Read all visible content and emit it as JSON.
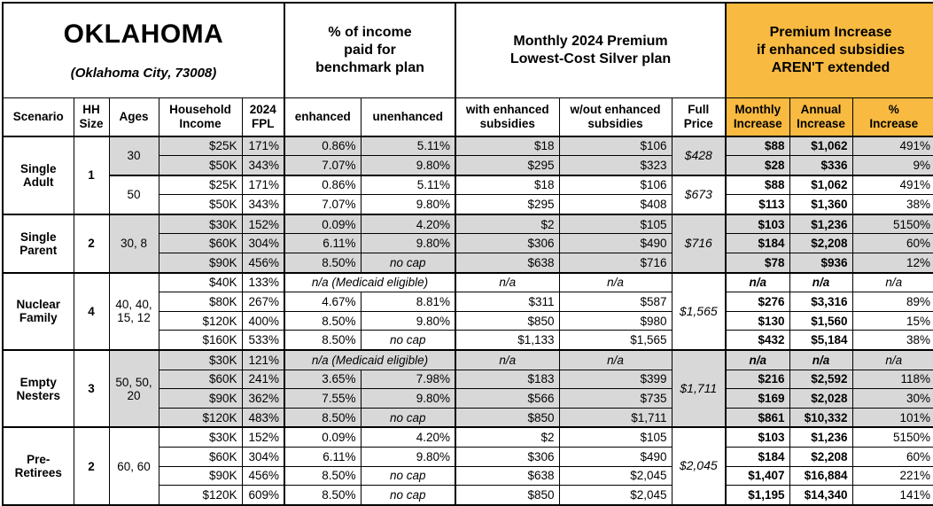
{
  "title": {
    "state": "OKLAHOMA",
    "city": "(Oklahoma City, 73008)"
  },
  "colors": {
    "highlight_orange": "#F8BA40",
    "row_shade_gray": "#D8D8D8"
  },
  "header": {
    "group_income": "% of income\npaid for\nbenchmark plan",
    "group_premium": "Monthly 2024 Premium\nLowest-Cost Silver plan",
    "group_increase": "Premium Increase\nif enhanced subsidies\nAREN'T extended",
    "columns": [
      "Scenario",
      "HH\nSize",
      "Ages",
      "Household\nIncome",
      "2024\nFPL",
      "enhanced",
      "unenhanced",
      "with enhanced\nsubsidies",
      "w/out enhanced\nsubsidies",
      "Full\nPrice",
      "Monthly\nIncrease",
      "Annual\nIncrease",
      "%\nIncrease"
    ]
  },
  "scenarios": [
    {
      "name": "Single\nAdult",
      "hh_size": "1",
      "subgroups": [
        {
          "ages": "30",
          "shaded": true,
          "full_price": "$428",
          "rows": [
            {
              "income": "$25K",
              "fpl": "171%",
              "enhanced": "0.86%",
              "unenhanced": "5.11%",
              "with_subsidies": "$18",
              "without_subsidies": "$106",
              "monthly_increase": "$88",
              "annual_increase": "$1,062",
              "pct_increase": "491%"
            },
            {
              "income": "$50K",
              "fpl": "343%",
              "enhanced": "7.07%",
              "unenhanced": "9.80%",
              "with_subsidies": "$295",
              "without_subsidies": "$323",
              "monthly_increase": "$28",
              "annual_increase": "$336",
              "pct_increase": "9%"
            }
          ]
        },
        {
          "ages": "50",
          "shaded": false,
          "full_price": "$673",
          "rows": [
            {
              "income": "$25K",
              "fpl": "171%",
              "enhanced": "0.86%",
              "unenhanced": "5.11%",
              "with_subsidies": "$18",
              "without_subsidies": "$106",
              "monthly_increase": "$88",
              "annual_increase": "$1,062",
              "pct_increase": "491%"
            },
            {
              "income": "$50K",
              "fpl": "343%",
              "enhanced": "7.07%",
              "unenhanced": "9.80%",
              "with_subsidies": "$295",
              "without_subsidies": "$408",
              "monthly_increase": "$113",
              "annual_increase": "$1,360",
              "pct_increase": "38%"
            }
          ]
        }
      ]
    },
    {
      "name": "Single\nParent",
      "hh_size": "2",
      "subgroups": [
        {
          "ages": "30, 8",
          "shaded": true,
          "full_price": "$716",
          "rows": [
            {
              "income": "$30K",
              "fpl": "152%",
              "enhanced": "0.09%",
              "unenhanced": "4.20%",
              "with_subsidies": "$2",
              "without_subsidies": "$105",
              "monthly_increase": "$103",
              "annual_increase": "$1,236",
              "pct_increase": "5150%"
            },
            {
              "income": "$60K",
              "fpl": "304%",
              "enhanced": "6.11%",
              "unenhanced": "9.80%",
              "with_subsidies": "$306",
              "without_subsidies": "$490",
              "monthly_increase": "$184",
              "annual_increase": "$2,208",
              "pct_increase": "60%"
            },
            {
              "income": "$90K",
              "fpl": "456%",
              "enhanced": "8.50%",
              "unenhanced": "no cap",
              "with_subsidies": "$638",
              "without_subsidies": "$716",
              "monthly_increase": "$78",
              "annual_increase": "$936",
              "pct_increase": "12%"
            }
          ]
        }
      ]
    },
    {
      "name": "Nuclear\nFamily",
      "hh_size": "4",
      "subgroups": [
        {
          "ages": "40, 40,\n15, 12",
          "shaded": false,
          "full_price": "$1,565",
          "rows": [
            {
              "income": "$40K",
              "fpl": "133%",
              "medicaid_note": "n/a (Medicaid eligible)",
              "with_subsidies": "n/a",
              "without_subsidies": "n/a",
              "monthly_increase": "n/a",
              "annual_increase": "n/a",
              "pct_increase": "n/a"
            },
            {
              "income": "$80K",
              "fpl": "267%",
              "enhanced": "4.67%",
              "unenhanced": "8.81%",
              "with_subsidies": "$311",
              "without_subsidies": "$587",
              "monthly_increase": "$276",
              "annual_increase": "$3,316",
              "pct_increase": "89%"
            },
            {
              "income": "$120K",
              "fpl": "400%",
              "enhanced": "8.50%",
              "unenhanced": "9.80%",
              "with_subsidies": "$850",
              "without_subsidies": "$980",
              "monthly_increase": "$130",
              "annual_increase": "$1,560",
              "pct_increase": "15%"
            },
            {
              "income": "$160K",
              "fpl": "533%",
              "enhanced": "8.50%",
              "unenhanced": "no cap",
              "with_subsidies": "$1,133",
              "without_subsidies": "$1,565",
              "monthly_increase": "$432",
              "annual_increase": "$5,184",
              "pct_increase": "38%"
            }
          ]
        }
      ]
    },
    {
      "name": "Empty\nNesters",
      "hh_size": "3",
      "subgroups": [
        {
          "ages": "50, 50,\n20",
          "shaded": true,
          "full_price": "$1,711",
          "rows": [
            {
              "income": "$30K",
              "fpl": "121%",
              "medicaid_note": "n/a (Medicaid eligible)",
              "with_subsidies": "n/a",
              "without_subsidies": "n/a",
              "monthly_increase": "n/a",
              "annual_increase": "n/a",
              "pct_increase": "n/a"
            },
            {
              "income": "$60K",
              "fpl": "241%",
              "enhanced": "3.65%",
              "unenhanced": "7.98%",
              "with_subsidies": "$183",
              "without_subsidies": "$399",
              "monthly_increase": "$216",
              "annual_increase": "$2,592",
              "pct_increase": "118%"
            },
            {
              "income": "$90K",
              "fpl": "362%",
              "enhanced": "7.55%",
              "unenhanced": "9.80%",
              "with_subsidies": "$566",
              "without_subsidies": "$735",
              "monthly_increase": "$169",
              "annual_increase": "$2,028",
              "pct_increase": "30%"
            },
            {
              "income": "$120K",
              "fpl": "483%",
              "enhanced": "8.50%",
              "unenhanced": "no cap",
              "with_subsidies": "$850",
              "without_subsidies": "$1,711",
              "monthly_increase": "$861",
              "annual_increase": "$10,332",
              "pct_increase": "101%"
            }
          ]
        }
      ]
    },
    {
      "name": "Pre-\nRetirees",
      "hh_size": "2",
      "subgroups": [
        {
          "ages": "60, 60",
          "shaded": false,
          "full_price": "$2,045",
          "rows": [
            {
              "income": "$30K",
              "fpl": "152%",
              "enhanced": "0.09%",
              "unenhanced": "4.20%",
              "with_subsidies": "$2",
              "without_subsidies": "$105",
              "monthly_increase": "$103",
              "annual_increase": "$1,236",
              "pct_increase": "5150%"
            },
            {
              "income": "$60K",
              "fpl": "304%",
              "enhanced": "6.11%",
              "unenhanced": "9.80%",
              "with_subsidies": "$306",
              "without_subsidies": "$490",
              "monthly_increase": "$184",
              "annual_increase": "$2,208",
              "pct_increase": "60%"
            },
            {
              "income": "$90K",
              "fpl": "456%",
              "enhanced": "8.50%",
              "unenhanced": "no cap",
              "with_subsidies": "$638",
              "without_subsidies": "$2,045",
              "monthly_increase": "$1,407",
              "annual_increase": "$16,884",
              "pct_increase": "221%"
            },
            {
              "income": "$120K",
              "fpl": "609%",
              "enhanced": "8.50%",
              "unenhanced": "no cap",
              "with_subsidies": "$850",
              "without_subsidies": "$2,045",
              "monthly_increase": "$1,195",
              "annual_increase": "$14,340",
              "pct_increase": "141%"
            }
          ]
        }
      ]
    }
  ]
}
